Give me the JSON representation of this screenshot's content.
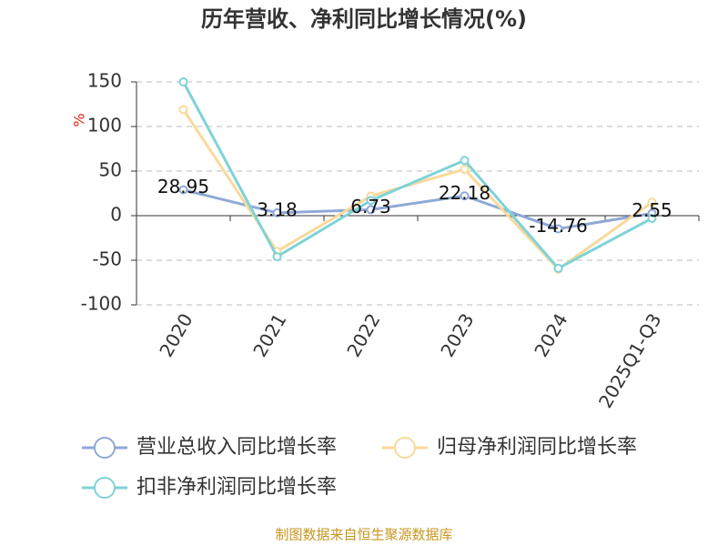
{
  "chart_data": {
    "type": "line",
    "title": "历年营收、净利同比增长情况(%)",
    "y_label": "%",
    "categories": [
      "2020",
      "2021",
      "2022",
      "2023",
      "2024",
      "2025Q1-Q3"
    ],
    "series": [
      {
        "name": "营业总收入同比增长率",
        "color": "#8fa9d6",
        "values": [
          28.95,
          3.18,
          6.73,
          22.18,
          -14.76,
          2.55
        ],
        "show_labels": true
      },
      {
        "name": "归母净利润同比增长率",
        "color": "#f9d99a",
        "values": [
          119,
          -40,
          22,
          52,
          -60,
          15
        ],
        "show_labels": false
      },
      {
        "name": "扣非净利润同比增长率",
        "color": "#7fd3d6",
        "values": [
          150,
          -46,
          17,
          62,
          -59,
          -3
        ],
        "show_labels": false
      }
    ],
    "ylim": [
      -100,
      150
    ],
    "yticks": [
      -100,
      -50,
      0,
      50,
      100,
      150
    ],
    "grid": true,
    "source": "制图数据来自恒生聚源数据库"
  }
}
